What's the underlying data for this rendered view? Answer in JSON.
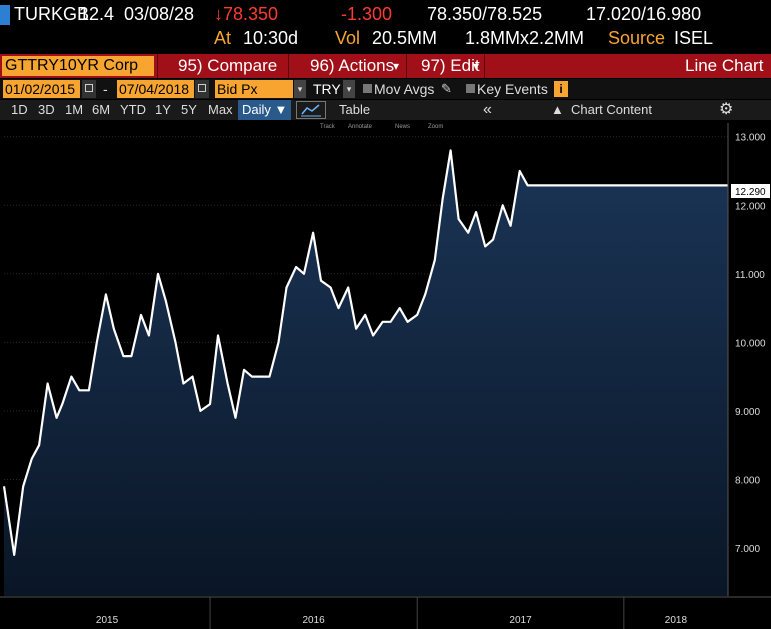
{
  "quote": {
    "ticker": "TURKGB",
    "coupon": "12.4",
    "maturity": "03/08/28",
    "last": "↓78.350",
    "change": "-1.300",
    "bid_ask": "78.350/78.525",
    "yields": "17.020/16.980",
    "at_label": "At",
    "time": "10:30d",
    "vol_label": "Vol",
    "volume": "20.5MM",
    "sizes": "1.8MMx2.2MM",
    "source_label": "Source",
    "source": "ISEL"
  },
  "command_bar": {
    "security": "GTTRY10YR Corp",
    "compare": "95) Compare",
    "actions": "96) Actions",
    "edit": "97) Edit",
    "view_title": "Line Chart"
  },
  "controls": {
    "start_date": "01/02/2015",
    "dash": "-",
    "end_date": "07/04/2018",
    "field": "Bid Px",
    "currency": "TRY",
    "mov_avgs": "Mov Avgs",
    "key_events": "Key Events",
    "info": "i"
  },
  "periods": {
    "items": [
      "1D",
      "3D",
      "1M",
      "6M",
      "YTD",
      "1Y",
      "5Y",
      "Max"
    ],
    "frequency": "Daily",
    "table": "Table",
    "chart_content": "Chart Content"
  },
  "chart_tools": [
    "Track",
    "Annotate",
    "News",
    "Zoom"
  ],
  "colors": {
    "background": "#000000",
    "area_top": "#1b3557",
    "area_bottom": "#0a1626",
    "line": "#ffffff",
    "accent": "#f7a530",
    "command_bar": "#a10f19",
    "down": "#ff3b30"
  },
  "chart_data": {
    "type": "area",
    "x_tick_labels": [
      "2015",
      "2016",
      "2017",
      "2018"
    ],
    "y_tick_labels": [
      "7.000",
      "8.000",
      "9.000",
      "10.000",
      "11.000",
      "12.000",
      "13.000"
    ],
    "ylim": [
      6.3,
      13.2
    ],
    "xlim": [
      "2015-01-02",
      "2018-07-04"
    ],
    "last_value_label": "12.290",
    "last_value": 12.29,
    "grid": true,
    "series": [
      {
        "x": [
          "2015-01-02",
          "2015-01-20",
          "2015-02-05",
          "2015-02-20",
          "2015-03-05",
          "2015-03-20",
          "2015-04-05",
          "2015-04-15",
          "2015-05-01",
          "2015-05-15",
          "2015-06-01",
          "2015-06-15",
          "2015-07-01",
          "2015-07-15",
          "2015-08-01",
          "2015-08-15",
          "2015-09-01",
          "2015-09-15",
          "2015-10-01",
          "2015-10-15",
          "2015-11-01",
          "2015-11-15",
          "2015-12-01",
          "2015-12-15",
          "2016-01-01",
          "2016-01-15",
          "2016-02-01",
          "2016-02-15",
          "2016-03-01",
          "2016-03-15",
          "2016-04-01",
          "2016-04-15",
          "2016-05-01",
          "2016-05-15",
          "2016-06-01",
          "2016-06-15",
          "2016-07-01",
          "2016-07-15",
          "2016-08-01",
          "2016-08-15",
          "2016-09-01",
          "2016-09-15",
          "2016-10-01",
          "2016-10-15",
          "2016-11-01",
          "2016-11-15",
          "2016-12-01",
          "2016-12-15",
          "2017-01-01",
          "2017-01-15",
          "2017-02-01",
          "2017-02-15",
          "2017-03-01",
          "2017-03-15",
          "2017-04-01",
          "2017-04-15",
          "2017-05-01",
          "2017-05-15",
          "2017-06-01",
          "2017-06-15",
          "2017-07-01",
          "2017-07-15",
          "2017-08-01",
          "2017-08-15",
          "2017-09-01",
          "2017-09-15",
          "2017-10-01",
          "2017-10-15",
          "2017-11-01",
          "2017-11-15",
          "2017-12-01",
          "2017-12-15",
          "2018-01-01",
          "2018-01-15",
          "2018-02-01",
          "2018-02-15",
          "2018-03-01",
          "2018-03-15",
          "2018-04-01",
          "2018-04-15",
          "2018-05-01",
          "2018-05-15",
          "2018-06-01",
          "2018-06-15",
          "2018-07-04"
        ],
        "y": [
          7.9,
          6.9,
          7.9,
          8.3,
          8.5,
          9.4,
          8.9,
          9.1,
          9.5,
          9.3,
          9.3,
          10.0,
          10.7,
          10.2,
          9.8,
          9.8,
          10.4,
          10.1,
          11.0,
          10.6,
          10.0,
          9.4,
          9.5,
          9.0,
          9.1,
          10.1,
          9.4,
          8.9,
          9.6,
          9.5,
          9.5,
          9.5,
          10.0,
          10.8,
          11.1,
          11.0,
          11.6,
          10.9,
          10.8,
          10.5,
          10.8,
          10.2,
          10.4,
          10.1,
          10.3,
          10.3,
          10.5,
          10.3,
          10.4,
          10.7,
          11.2,
          12.1,
          12.8,
          11.8,
          11.6,
          11.9,
          11.4,
          11.5,
          12.0,
          11.7,
          12.5,
          12.29,
          12.29,
          12.29,
          12.29,
          12.29,
          12.29,
          12.29,
          12.29,
          12.29,
          12.29,
          12.29,
          12.29,
          12.29,
          12.29,
          12.29,
          12.29,
          12.29,
          12.29,
          12.29,
          12.29,
          12.29,
          12.29,
          12.29,
          12.29
        ]
      }
    ]
  }
}
